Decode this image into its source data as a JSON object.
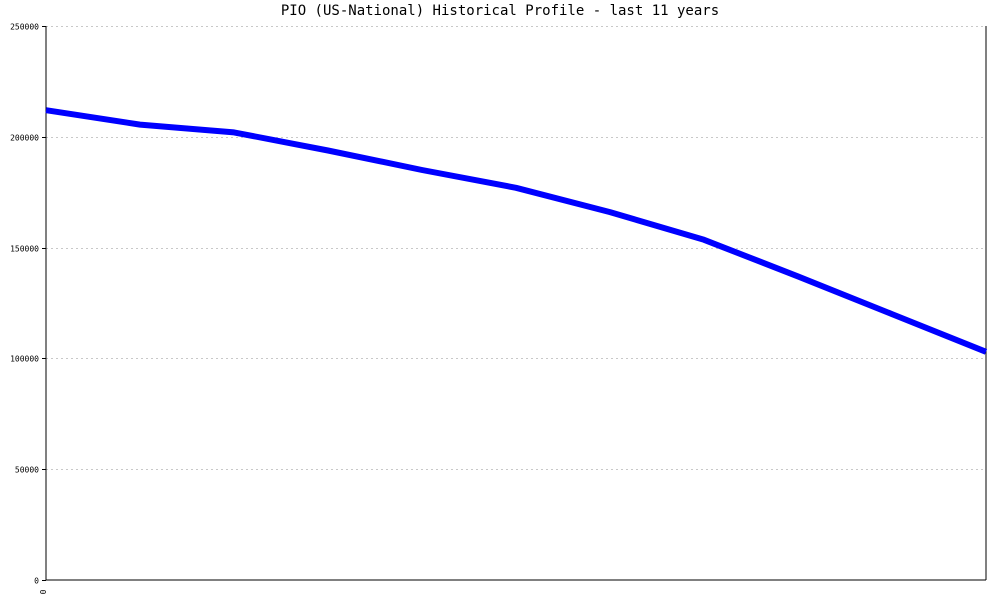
{
  "chart_data": {
    "type": "line",
    "title": "PIO (US-National) Historical Profile - last 11 years",
    "xlabel": "",
    "ylabel": "",
    "ylim": [
      0,
      250000
    ],
    "yticks": [
      0,
      50000,
      100000,
      150000,
      200000,
      250000
    ],
    "ytick_labels": [
      "0",
      "50000",
      "100000",
      "150000",
      "200000",
      "250000"
    ],
    "xticks": [
      0
    ],
    "xtick_labels": [
      "0"
    ],
    "grid": true,
    "legend": "none",
    "series": [
      {
        "color": "#0000ff",
        "values": [
          212000,
          205500,
          202000,
          193800,
          185000,
          177000,
          166000,
          153500,
          137000,
          120000,
          103000
        ]
      }
    ]
  }
}
